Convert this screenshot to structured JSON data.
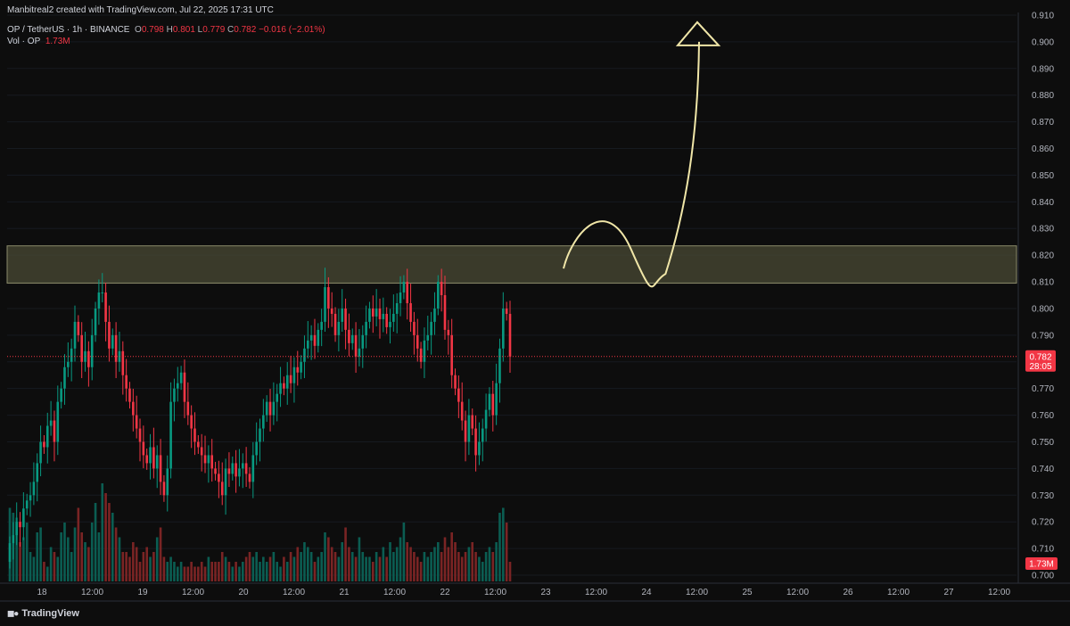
{
  "header": {
    "credit": "Manbitreal2 created with TradingView.com, Jul 22, 2025 17:31 UTC",
    "symbol": "OP / TetherUS · 1h · BINANCE",
    "o_label": "O",
    "o_value": "0.798",
    "h_label": "H",
    "h_value": "0.801",
    "l_label": "L",
    "l_value": "0.779",
    "c_label": "C",
    "c_value": "0.782",
    "change": "−0.016 (−2.01%)",
    "vol_label": "Vol · OP",
    "vol_value": "1.73M"
  },
  "footer": {
    "brand": "TradingView",
    "logo_icon": "tradingview-logo-icon"
  },
  "colors": {
    "up": "#089981",
    "down": "#f23645",
    "vol_up": "#0b5d52",
    "vol_down": "#7a2424",
    "zone_fill": "#4a4a34",
    "zone_border": "#8a8a6a",
    "arrow": "#f0e6a8",
    "axis_text": "#b2b5be",
    "background": "#0d0d0d"
  },
  "chart_data": {
    "type": "candlestick",
    "ylim": [
      0.697,
      0.911
    ],
    "y_ticks": [
      "0.910",
      "0.900",
      "0.890",
      "0.880",
      "0.870",
      "0.860",
      "0.850",
      "0.840",
      "0.830",
      "0.820",
      "0.810",
      "0.800",
      "0.790",
      "0.780",
      "0.770",
      "0.760",
      "0.750",
      "0.740",
      "0.730",
      "0.720",
      "0.710",
      "0.700"
    ],
    "x_ticks": [
      "18",
      "12:00",
      "19",
      "12:00",
      "20",
      "12:00",
      "21",
      "12:00",
      "22",
      "12:00",
      "23",
      "12:00",
      "24",
      "12:00",
      "25",
      "12:00",
      "26",
      "12:00",
      "27",
      "12:00"
    ],
    "last_price": "0.782",
    "last_price_value": 0.782,
    "countdown": "28:05",
    "last_volume": "1.73M",
    "resistance_zone": [
      0.8095,
      0.8235
    ],
    "projection_path": [
      [
        0.0,
        0.815
      ],
      [
        1.0,
        0.83
      ],
      [
        2.0,
        0.822
      ],
      [
        2.8,
        0.813
      ],
      [
        3.6,
        0.85
      ],
      [
        4.0,
        0.9
      ]
    ],
    "closes": [
      0.712,
      0.715,
      0.72,
      0.718,
      0.725,
      0.728,
      0.73,
      0.735,
      0.742,
      0.75,
      0.748,
      0.756,
      0.758,
      0.75,
      0.765,
      0.77,
      0.778,
      0.78,
      0.785,
      0.795,
      0.79,
      0.78,
      0.784,
      0.778,
      0.79,
      0.8,
      0.806,
      0.806,
      0.795,
      0.785,
      0.79,
      0.78,
      0.784,
      0.775,
      0.77,
      0.765,
      0.76,
      0.755,
      0.75,
      0.745,
      0.742,
      0.748,
      0.74,
      0.745,
      0.735,
      0.73,
      0.74,
      0.765,
      0.77,
      0.772,
      0.776,
      0.765,
      0.76,
      0.755,
      0.75,
      0.748,
      0.745,
      0.742,
      0.745,
      0.74,
      0.738,
      0.735,
      0.73,
      0.74,
      0.738,
      0.742,
      0.737,
      0.74,
      0.742,
      0.738,
      0.735,
      0.745,
      0.75,
      0.755,
      0.76,
      0.765,
      0.76,
      0.765,
      0.768,
      0.772,
      0.77,
      0.775,
      0.772,
      0.778,
      0.776,
      0.78,
      0.785,
      0.788,
      0.79,
      0.786,
      0.792,
      0.795,
      0.808,
      0.8,
      0.798,
      0.79,
      0.795,
      0.8,
      0.792,
      0.787,
      0.79,
      0.782,
      0.785,
      0.79,
      0.795,
      0.8,
      0.797,
      0.8,
      0.796,
      0.798,
      0.793,
      0.795,
      0.798,
      0.802,
      0.806,
      0.81,
      0.802,
      0.795,
      0.79,
      0.785,
      0.78,
      0.788,
      0.79,
      0.795,
      0.8,
      0.81,
      0.805,
      0.792,
      0.79,
      0.775,
      0.77,
      0.765,
      0.758,
      0.75,
      0.76,
      0.755,
      0.745,
      0.75,
      0.755,
      0.762,
      0.768,
      0.76,
      0.772,
      0.785,
      0.8,
      0.798,
      0.782
    ],
    "volumes": [
      0.75,
      0.7,
      0.65,
      0.4,
      0.45,
      0.6,
      0.3,
      0.25,
      0.5,
      0.55,
      0.2,
      0.15,
      0.35,
      0.3,
      0.25,
      0.5,
      0.6,
      0.45,
      0.3,
      0.55,
      0.75,
      0.5,
      0.4,
      0.35,
      0.6,
      0.8,
      0.5,
      1.0,
      0.9,
      0.8,
      0.7,
      0.55,
      0.45,
      0.3,
      0.3,
      0.25,
      0.4,
      0.35,
      0.2,
      0.3,
      0.35,
      0.25,
      0.3,
      0.45,
      0.55,
      0.25,
      0.2,
      0.25,
      0.2,
      0.15,
      0.2,
      0.15,
      0.15,
      0.2,
      0.15,
      0.15,
      0.2,
      0.15,
      0.25,
      0.2,
      0.2,
      0.2,
      0.3,
      0.25,
      0.2,
      0.15,
      0.2,
      0.15,
      0.2,
      0.25,
      0.3,
      0.25,
      0.3,
      0.2,
      0.25,
      0.2,
      0.25,
      0.3,
      0.2,
      0.15,
      0.25,
      0.2,
      0.3,
      0.25,
      0.35,
      0.3,
      0.4,
      0.35,
      0.3,
      0.2,
      0.25,
      0.3,
      0.5,
      0.45,
      0.35,
      0.3,
      0.25,
      0.4,
      0.55,
      0.35,
      0.3,
      0.25,
      0.45,
      0.3,
      0.25,
      0.25,
      0.2,
      0.3,
      0.25,
      0.35,
      0.25,
      0.4,
      0.3,
      0.35,
      0.45,
      0.6,
      0.4,
      0.35,
      0.3,
      0.25,
      0.2,
      0.3,
      0.25,
      0.3,
      0.35,
      0.4,
      0.3,
      0.45,
      0.35,
      0.5,
      0.4,
      0.3,
      0.25,
      0.3,
      0.35,
      0.4,
      0.3,
      0.25,
      0.2,
      0.3,
      0.35,
      0.3,
      0.4,
      0.7,
      0.75,
      0.6,
      0.2
    ]
  }
}
